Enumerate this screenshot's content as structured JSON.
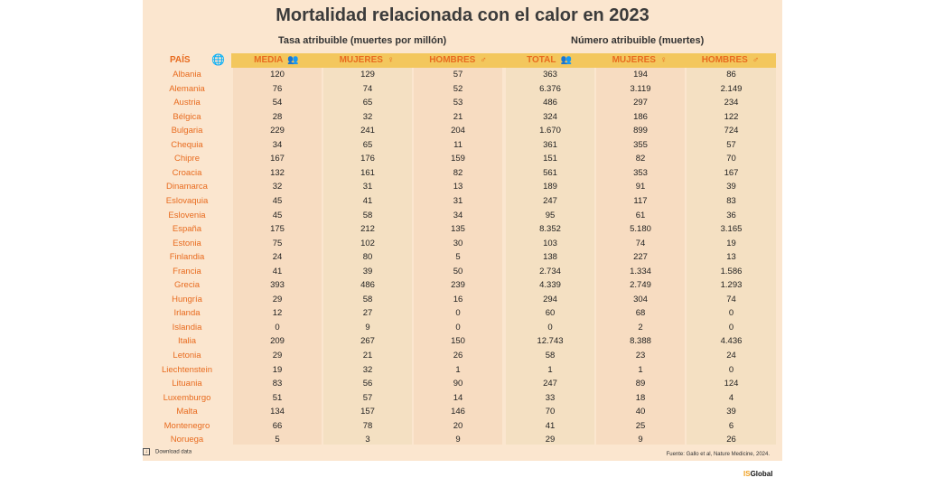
{
  "title": "Mortalidad relacionada con el calor en 2023",
  "groups": {
    "rate": "Tasa atribuible (muertes por millón)",
    "count": "Número atribuible (muertes)"
  },
  "headers": {
    "pais": "PAÍS",
    "media": "MEDIA",
    "mujeres": "MUJERES",
    "hombres": "HOMBRES",
    "total": "TOTAL"
  },
  "symbols": {
    "people": "👥",
    "female": "♀",
    "male": "♂",
    "globe": "🌐"
  },
  "colors": {
    "background": "#fbe6cf",
    "header_band": "#f3c75d",
    "accent": "#e86b1f"
  },
  "footer": {
    "download": "Download data",
    "source": "Fuente: Gallo et al, Nature Medicine, 2024.",
    "brand_mark": "IS",
    "brand": "Global"
  },
  "chart_data": {
    "type": "table",
    "title": "Mortalidad relacionada con el calor en 2023",
    "columns": [
      "PAÍS",
      "MEDIA",
      "MUJERES",
      "HOMBRES",
      "TOTAL",
      "MUJERES",
      "HOMBRES"
    ],
    "rows": [
      [
        "Albania",
        "120",
        "129",
        "57",
        "363",
        "194",
        "86"
      ],
      [
        "Alemania",
        "76",
        "74",
        "52",
        "6.376",
        "3.119",
        "2.149"
      ],
      [
        "Austria",
        "54",
        "65",
        "53",
        "486",
        "297",
        "234"
      ],
      [
        "Bélgica",
        "28",
        "32",
        "21",
        "324",
        "186",
        "122"
      ],
      [
        "Bulgaria",
        "229",
        "241",
        "204",
        "1.670",
        "899",
        "724"
      ],
      [
        "Chequia",
        "34",
        "65",
        "11",
        "361",
        "355",
        "57"
      ],
      [
        "Chipre",
        "167",
        "176",
        "159",
        "151",
        "82",
        "70"
      ],
      [
        "Croacia",
        "132",
        "161",
        "82",
        "561",
        "353",
        "167"
      ],
      [
        "Dinamarca",
        "32",
        "31",
        "13",
        "189",
        "91",
        "39"
      ],
      [
        "Eslovaquia",
        "45",
        "41",
        "31",
        "247",
        "117",
        "83"
      ],
      [
        "Eslovenia",
        "45",
        "58",
        "34",
        "95",
        "61",
        "36"
      ],
      [
        "España",
        "175",
        "212",
        "135",
        "8.352",
        "5.180",
        "3.165"
      ],
      [
        "Estonia",
        "75",
        "102",
        "30",
        "103",
        "74",
        "19"
      ],
      [
        "Finlandia",
        "24",
        "80",
        "5",
        "138",
        "227",
        "13"
      ],
      [
        "Francia",
        "41",
        "39",
        "50",
        "2.734",
        "1.334",
        "1.586"
      ],
      [
        "Grecia",
        "393",
        "486",
        "239",
        "4.339",
        "2.749",
        "1.293"
      ],
      [
        "Hungría",
        "29",
        "58",
        "16",
        "294",
        "304",
        "74"
      ],
      [
        "Irlanda",
        "12",
        "27",
        "0",
        "60",
        "68",
        "0"
      ],
      [
        "Islandia",
        "0",
        "9",
        "0",
        "0",
        "2",
        "0"
      ],
      [
        "Italia",
        "209",
        "267",
        "150",
        "12.743",
        "8.388",
        "4.436"
      ],
      [
        "Letonia",
        "29",
        "21",
        "26",
        "58",
        "23",
        "24"
      ],
      [
        "Liechtenstein",
        "19",
        "32",
        "1",
        "1",
        "1",
        "0"
      ],
      [
        "Lituania",
        "83",
        "56",
        "90",
        "247",
        "89",
        "124"
      ],
      [
        "Luxemburgo",
        "51",
        "57",
        "14",
        "33",
        "18",
        "4"
      ],
      [
        "Malta",
        "134",
        "157",
        "146",
        "70",
        "40",
        "39"
      ],
      [
        "Montenegro",
        "66",
        "78",
        "20",
        "41",
        "25",
        "6"
      ],
      [
        "Noruega",
        "5",
        "3",
        "9",
        "29",
        "9",
        "26"
      ]
    ]
  }
}
